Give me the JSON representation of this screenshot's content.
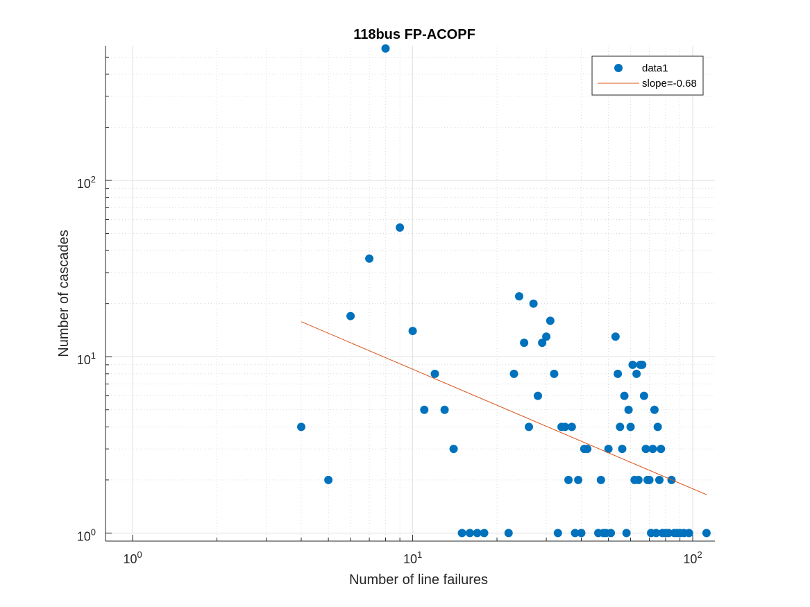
{
  "chart_data": {
    "type": "scatter",
    "title": "118bus FP-ACOPF",
    "xlabel": "Number of line failures",
    "ylabel": "Number of cascades",
    "xscale": "log",
    "yscale": "log",
    "xlim": [
      0.8,
      120
    ],
    "ylim": [
      0.9,
      580
    ],
    "grid": true,
    "legend_position": "top-right",
    "xticks": [
      {
        "value": 1,
        "base": "10",
        "exp": "0"
      },
      {
        "value": 10,
        "base": "10",
        "exp": "1"
      },
      {
        "value": 100,
        "base": "10",
        "exp": "2"
      }
    ],
    "yticks": [
      {
        "value": 1,
        "base": "10",
        "exp": "0"
      },
      {
        "value": 10,
        "base": "10",
        "exp": "1"
      },
      {
        "value": 100,
        "base": "10",
        "exp": "2"
      }
    ],
    "series": [
      {
        "name": "data1",
        "kind": "points",
        "color": "#0072BD",
        "x": [
          4,
          5,
          6,
          7,
          8,
          9,
          10,
          11,
          12,
          13,
          14,
          15,
          16,
          17,
          18,
          22,
          23,
          24,
          25,
          26,
          27,
          28,
          29,
          30,
          31,
          32,
          33,
          34,
          35,
          36,
          37,
          38,
          39,
          40,
          41,
          42,
          46,
          47,
          48,
          49,
          50,
          51,
          53,
          54,
          55,
          56,
          57,
          58,
          59,
          60,
          61,
          62,
          63,
          64,
          65,
          66,
          67,
          68,
          69,
          70,
          71,
          72,
          73,
          74,
          75,
          76,
          77,
          78,
          80,
          82,
          84,
          86,
          88,
          90,
          93,
          97,
          112
        ],
        "y": [
          4,
          2,
          17,
          36,
          560,
          54,
          14,
          5,
          8,
          5,
          3,
          1,
          1,
          1,
          1,
          1,
          8,
          22,
          12,
          4,
          20,
          6,
          12,
          13,
          16,
          8,
          1,
          4,
          4,
          2,
          4,
          1,
          2,
          1,
          3,
          3,
          1,
          2,
          1,
          1,
          3,
          1,
          13,
          8,
          4,
          3,
          6,
          1,
          5,
          4,
          9,
          2,
          8,
          2,
          9,
          9,
          6,
          3,
          2,
          2,
          1,
          3,
          5,
          1,
          4,
          2,
          3,
          1,
          1,
          1,
          2,
          1,
          1,
          1,
          1,
          1,
          1
        ]
      },
      {
        "name": "slope=-0.68",
        "kind": "line",
        "color": "#D95319",
        "x": [
          4,
          112
        ],
        "y": [
          15.8,
          1.65
        ]
      }
    ]
  }
}
